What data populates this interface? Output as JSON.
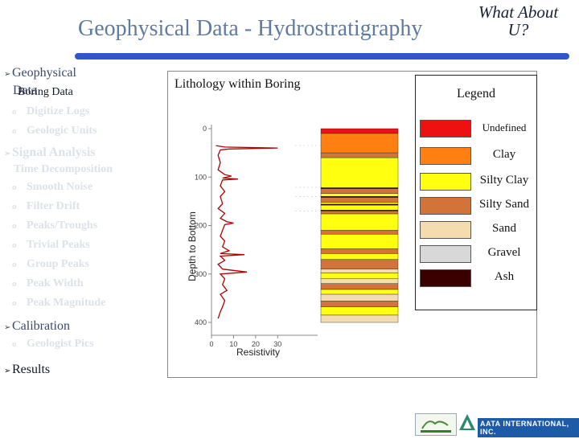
{
  "header": {
    "title": "Geophysical Data - Hydrostratigraphy",
    "aside_line1": "What About",
    "aside_line2": "U?"
  },
  "nav": {
    "marker": "➢",
    "bullet": "o",
    "geophysical": "Geophysical",
    "geophysical_line2": "Data",
    "boring_data": "Boring Data",
    "digitize_logs": "Digitize Logs",
    "geologic_units": "Geologic Units",
    "signal_analysis": "Signal Analysis",
    "time_decomposition": "Time Decomposition",
    "signal_items": [
      "Smooth Noise",
      "Filter Drift",
      "Peaks/Troughs",
      "Trivial Peaks",
      "Group Peaks",
      "Peak Width",
      "Peak Magnitude"
    ],
    "calibration": "Calibration",
    "geologist_pics": "Geologist Pics",
    "results": "Results"
  },
  "panel": {
    "title": "Lithology within Boring"
  },
  "chart_data": {
    "type": "line",
    "xlabel": "Resistivity",
    "ylabel": "Depth to Bottom",
    "xlim": [
      0,
      35
    ],
    "ylim": [
      0,
      420
    ],
    "x_ticks": [
      "0",
      "10",
      "20",
      "30"
    ],
    "y_ticks": [
      "0",
      "100",
      "200",
      "300",
      "400"
    ],
    "series": [
      {
        "color": "#b00000",
        "points": [
          [
            2,
            35
          ],
          [
            6,
            38
          ],
          [
            30,
            40
          ],
          [
            8,
            42
          ],
          [
            4,
            44
          ],
          [
            3,
            55
          ],
          [
            4,
            70
          ],
          [
            3,
            85
          ],
          [
            6,
            95
          ],
          [
            9,
            98
          ],
          [
            5,
            102
          ],
          [
            12,
            104
          ],
          [
            5,
            106
          ],
          [
            4,
            118
          ],
          [
            6,
            130
          ],
          [
            4,
            140
          ],
          [
            5,
            155
          ],
          [
            3,
            165
          ],
          [
            6,
            175
          ],
          [
            4,
            185
          ],
          [
            7,
            192
          ],
          [
            10,
            195
          ],
          [
            6,
            198
          ],
          [
            5,
            210
          ],
          [
            4,
            222
          ],
          [
            6,
            232
          ],
          [
            5,
            244
          ],
          [
            8,
            252
          ],
          [
            4,
            258
          ],
          [
            15,
            260
          ],
          [
            4,
            263
          ],
          [
            6,
            272
          ],
          [
            3,
            280
          ],
          [
            5,
            290
          ],
          [
            16,
            296
          ],
          [
            4,
            300
          ],
          [
            6,
            310
          ],
          [
            5,
            322
          ],
          [
            7,
            334
          ],
          [
            4,
            342
          ],
          [
            6,
            355
          ],
          [
            5,
            368
          ],
          [
            4,
            378
          ],
          [
            3,
            392
          ]
        ]
      }
    ]
  },
  "lithology_column": [
    {
      "unit": "Undefined",
      "top": 0,
      "bottom": 10
    },
    {
      "unit": "Clay",
      "top": 10,
      "bottom": 50
    },
    {
      "unit": "Silty Sand",
      "top": 50,
      "bottom": 60
    },
    {
      "unit": "Silty Clay",
      "top": 60,
      "bottom": 122
    },
    {
      "unit": "Ash",
      "top": 122,
      "bottom": 124
    },
    {
      "unit": "Silty Sand",
      "top": 124,
      "bottom": 134
    },
    {
      "unit": "Silty Clay",
      "top": 134,
      "bottom": 140
    },
    {
      "unit": "Ash",
      "top": 140,
      "bottom": 142
    },
    {
      "unit": "Silty Sand",
      "top": 142,
      "bottom": 152
    },
    {
      "unit": "Silty Clay",
      "top": 152,
      "bottom": 156
    },
    {
      "unit": "Ash",
      "top": 156,
      "bottom": 158
    },
    {
      "unit": "Silty Clay",
      "top": 158,
      "bottom": 168
    },
    {
      "unit": "Ash",
      "top": 168,
      "bottom": 170
    },
    {
      "unit": "Silty Sand",
      "top": 170,
      "bottom": 176
    },
    {
      "unit": "Silty Clay",
      "top": 176,
      "bottom": 210
    },
    {
      "unit": "Silty Sand",
      "top": 210,
      "bottom": 218
    },
    {
      "unit": "Silty Clay",
      "top": 218,
      "bottom": 248
    },
    {
      "unit": "Silty Sand",
      "top": 248,
      "bottom": 258
    },
    {
      "unit": "Silty Clay",
      "top": 258,
      "bottom": 270
    },
    {
      "unit": "Silty Sand",
      "top": 270,
      "bottom": 290
    },
    {
      "unit": "Sand",
      "top": 290,
      "bottom": 298
    },
    {
      "unit": "Silty Clay",
      "top": 298,
      "bottom": 310
    },
    {
      "unit": "Sand",
      "top": 310,
      "bottom": 320
    },
    {
      "unit": "Silty Sand",
      "top": 320,
      "bottom": 332
    },
    {
      "unit": "Silty Clay",
      "top": 332,
      "bottom": 342
    },
    {
      "unit": "Sand",
      "top": 342,
      "bottom": 356
    },
    {
      "unit": "Silty Sand",
      "top": 356,
      "bottom": 368
    },
    {
      "unit": "Silty Clay",
      "top": 368,
      "bottom": 385
    },
    {
      "unit": "Sand",
      "top": 385,
      "bottom": 400
    }
  ],
  "legend": {
    "title": "Legend",
    "items": [
      {
        "label": "Undefined",
        "color": "#ee1111"
      },
      {
        "label": "Clay",
        "color": "#ff7f10"
      },
      {
        "label": "Silty Clay",
        "color": "#ffff10"
      },
      {
        "label": "Silty Sand",
        "color": "#d2743a"
      },
      {
        "label": "Sand",
        "color": "#f4dcae"
      },
      {
        "label": "Gravel",
        "color": "#d8d8d8"
      },
      {
        "label": "Ash",
        "color": "#3a0000"
      }
    ]
  },
  "footer": {
    "logo_right_text": "AATA INTERNATIONAL, INC."
  }
}
